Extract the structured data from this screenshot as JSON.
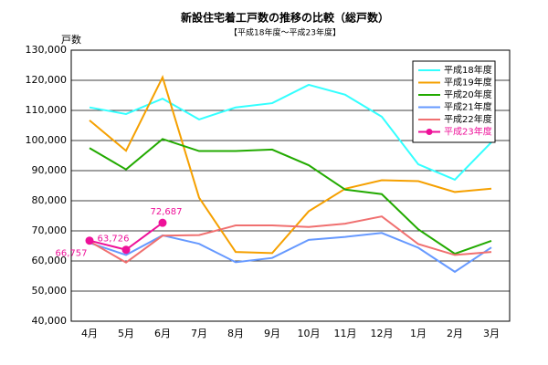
{
  "chart_data": {
    "type": "line",
    "title": "新設住宅着工戸数の推移の比較（総戸数）",
    "subtitle": "【平成18年度～平成23年度】",
    "y_label": "戸数",
    "categories": [
      "4月",
      "5月",
      "6月",
      "7月",
      "8月",
      "9月",
      "10月",
      "11月",
      "12月",
      "1月",
      "2月",
      "3月"
    ],
    "ylim": [
      40000,
      130000
    ],
    "yticks": [
      {
        "value": 40000,
        "label": "40,000"
      },
      {
        "value": 50000,
        "label": "50,000"
      },
      {
        "value": 60000,
        "label": "60,000"
      },
      {
        "value": 70000,
        "label": "70,000"
      },
      {
        "value": 80000,
        "label": "80,000"
      },
      {
        "value": 90000,
        "label": "90,000"
      },
      {
        "value": 100000,
        "label": "100,000"
      },
      {
        "value": 110000,
        "label": "110,000"
      },
      {
        "value": 120000,
        "label": "120,000"
      },
      {
        "value": 130000,
        "label": "130,000"
      }
    ],
    "grid": true,
    "legend": "upper right",
    "series": [
      {
        "name": "平成18年度",
        "color": "#33ffff",
        "values": [
          111000,
          108800,
          113900,
          107000,
          111000,
          112400,
          118500,
          115200,
          107900,
          92100,
          87000,
          99400
        ]
      },
      {
        "name": "平成19年度",
        "color": "#f5a000",
        "values": [
          106700,
          96600,
          121000,
          81000,
          63000,
          62600,
          76500,
          84000,
          86800,
          86500,
          82900,
          84000
        ]
      },
      {
        "name": "平成20年度",
        "color": "#22aa00",
        "values": [
          97500,
          90400,
          100500,
          96500,
          96500,
          97000,
          91800,
          83700,
          82200,
          70500,
          62400,
          66700
        ]
      },
      {
        "name": "平成21年度",
        "color": "#6699ff",
        "values": [
          66000,
          62000,
          68500,
          65700,
          59600,
          61000,
          67000,
          68000,
          69300,
          64400,
          56400,
          64500
        ]
      },
      {
        "name": "平成22年度",
        "color": "#f07070",
        "values": [
          66500,
          59500,
          68400,
          68600,
          71800,
          71800,
          71300,
          72400,
          74800,
          65600,
          62000,
          63000
        ]
      },
      {
        "name": "平成23年度",
        "color": "#ee1199",
        "markers": true,
        "values": [
          66757,
          63726,
          72687,
          null,
          null,
          null,
          null,
          null,
          null,
          null,
          null,
          null
        ],
        "value_labels": [
          "66,757",
          "63,726",
          "72,687",
          null,
          null,
          null,
          null,
          null,
          null,
          null,
          null,
          null
        ]
      }
    ]
  }
}
